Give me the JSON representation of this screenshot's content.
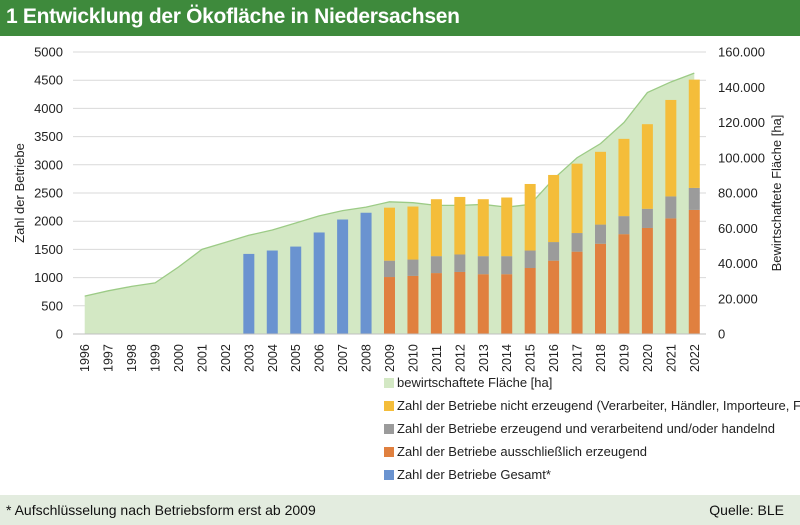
{
  "header": {
    "title": "1 Entwicklung der Ökofläche in Niedersachsen"
  },
  "footer": {
    "footnote": "* Aufschlüsselung nach Betriebsform erst ab 2009",
    "source": "Quelle: BLE"
  },
  "colors": {
    "header_bg": "#3e8a3c",
    "footer_bg": "#e3ecdf",
    "area_fill": "#d3e8c4",
    "area_line": "#9ccb86",
    "non_producing": "#f4bd3a",
    "processing": "#9b9b9b",
    "producing": "#e0803f",
    "total": "#6a93d0"
  },
  "chart_data": {
    "type": "bar",
    "title": "1 Entwicklung der Ökofläche in Niedersachsen",
    "ylabel": "Zahl der Betriebe",
    "y2label": "Bewirtschaftete Fläche [ha]",
    "ylim": [
      0,
      5000
    ],
    "y2lim": [
      0,
      160000
    ],
    "yticks": [
      "0",
      "500",
      "1000",
      "1500",
      "2000",
      "2500",
      "3000",
      "3500",
      "4000",
      "4500",
      "5000"
    ],
    "y2ticks": [
      "0",
      "20.000",
      "40.000",
      "60.000",
      "80.000",
      "100.000",
      "120.000",
      "140.000",
      "160.000"
    ],
    "categories": [
      "1996",
      "1997",
      "1998",
      "1999",
      "2000",
      "2001",
      "2002",
      "2003",
      "2004",
      "2005",
      "2006",
      "2007",
      "2008",
      "2009",
      "2010",
      "2011",
      "2012",
      "2013",
      "2014",
      "2015",
      "2016",
      "2017",
      "2018",
      "2019",
      "2020",
      "2021",
      "2022"
    ],
    "area": {
      "name": "bewirtschaftete Fläche [ha]",
      "axis": "right",
      "values": [
        21500,
        24500,
        27000,
        29000,
        38000,
        48000,
        52000,
        56000,
        59000,
        63000,
        67000,
        70000,
        72000,
        75000,
        74500,
        73000,
        73000,
        73500,
        72000,
        73500,
        88000,
        100000,
        108000,
        120000,
        137000,
        143000,
        148000
      ]
    },
    "stacked_series": [
      {
        "name": "Zahl der Betriebe ausschließlich erzeugend",
        "values": [
          null,
          null,
          null,
          null,
          null,
          null,
          null,
          null,
          null,
          null,
          null,
          null,
          null,
          1010,
          1030,
          1080,
          1100,
          1060,
          1060,
          1170,
          1300,
          1460,
          1600,
          1770,
          1880,
          2050,
          2200
        ]
      },
      {
        "name": "Zahl der Betriebe erzeugend und verarbeitend und/oder handelnd",
        "values": [
          null,
          null,
          null,
          null,
          null,
          null,
          null,
          null,
          null,
          null,
          null,
          null,
          null,
          290,
          290,
          300,
          310,
          320,
          320,
          310,
          330,
          330,
          340,
          320,
          340,
          390,
          390
        ]
      },
      {
        "name": "Zahl der Betriebe nicht erzeugend (Verarbeiter, Händler, Importeure, Futtermittel)",
        "values": [
          null,
          null,
          null,
          null,
          null,
          null,
          null,
          null,
          null,
          null,
          null,
          null,
          null,
          940,
          940,
          1010,
          1020,
          1010,
          1040,
          1180,
          1190,
          1230,
          1290,
          1370,
          1500,
          1710,
          1920
        ]
      }
    ],
    "total_series": {
      "name": "Zahl der Betriebe Gesamt*",
      "values": [
        null,
        null,
        null,
        null,
        null,
        null,
        null,
        1420,
        1480,
        1550,
        1800,
        2030,
        2150,
        null,
        null,
        null,
        null,
        null,
        null,
        null,
        null,
        null,
        null,
        null,
        null,
        null,
        null
      ]
    },
    "legend": {
      "position": "bottom",
      "items": [
        {
          "label": "bewirtschaftete Fläche [ha]",
          "color": "#d3e8c4"
        },
        {
          "label": "Zahl der Betriebe nicht erzeugend (Verarbeiter, Händler, Importeure, Futtermittel)",
          "color": "#f4bd3a"
        },
        {
          "label": "Zahl der Betriebe erzeugend und verarbeitend und/oder handelnd",
          "color": "#9b9b9b"
        },
        {
          "label": "Zahl der Betriebe ausschließlich erzeugend",
          "color": "#e0803f"
        },
        {
          "label": "Zahl der Betriebe Gesamt*",
          "color": "#6a93d0"
        }
      ]
    }
  }
}
